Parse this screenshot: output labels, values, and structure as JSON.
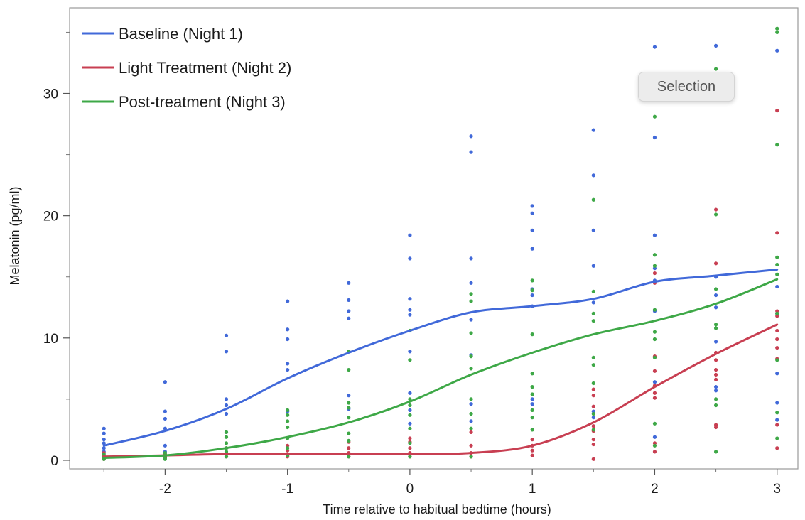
{
  "chart_data": {
    "type": "scatter",
    "title": "",
    "xlabel": "Time relative to habitual bedtime (hours)",
    "ylabel": "Melatonin (pg/ml)",
    "xlim": [
      -2.78,
      3.17
    ],
    "ylim": [
      -0.7,
      37.0
    ],
    "x_ticks": [
      -2,
      -1,
      0,
      1,
      2,
      3
    ],
    "x_tick_labels": [
      "-2",
      "-1",
      "0",
      "1",
      "2",
      "3"
    ],
    "y_ticks": [
      0,
      10,
      20,
      30
    ],
    "y_tick_labels": [
      "0",
      "10",
      "20",
      "30"
    ],
    "y_minor_ticks": [
      5,
      15,
      25,
      35
    ],
    "x_minor_ticks": [
      -2.5,
      -1.5,
      -0.5,
      0.5,
      1.5,
      2.5
    ],
    "grid": false,
    "legend_position": "top-left",
    "series": [
      {
        "name": "Baseline (Night 1)",
        "color": "#4169d9",
        "curve": [
          [
            -2.5,
            1.2
          ],
          [
            -2,
            2.4
          ],
          [
            -1.5,
            4.2
          ],
          [
            -1,
            6.7
          ],
          [
            -0.5,
            8.8
          ],
          [
            0,
            10.6
          ],
          [
            0.5,
            12.1
          ],
          [
            1,
            12.6
          ],
          [
            1.5,
            13.2
          ],
          [
            2,
            14.6
          ],
          [
            2.5,
            15.1
          ],
          [
            3,
            15.6
          ]
        ],
        "points": [
          [
            -2.5,
            2.6
          ],
          [
            -2.5,
            2.2
          ],
          [
            -2.5,
            1.7
          ],
          [
            -2.5,
            1.4
          ],
          [
            -2.5,
            1.0
          ],
          [
            -2.5,
            0.7
          ],
          [
            -2,
            6.4
          ],
          [
            -2,
            4.0
          ],
          [
            -2,
            3.4
          ],
          [
            -2,
            2.6
          ],
          [
            -2,
            1.2
          ],
          [
            -2,
            0.7
          ],
          [
            -1.5,
            10.2
          ],
          [
            -1.5,
            8.9
          ],
          [
            -1.5,
            5.0
          ],
          [
            -1.5,
            4.5
          ],
          [
            -1.5,
            3.8
          ],
          [
            -1.5,
            2.3
          ],
          [
            -1,
            13.0
          ],
          [
            -1,
            10.7
          ],
          [
            -1,
            9.9
          ],
          [
            -1,
            7.9
          ],
          [
            -1,
            7.4
          ],
          [
            -1,
            4.0
          ],
          [
            -0.5,
            14.5
          ],
          [
            -0.5,
            13.1
          ],
          [
            -0.5,
            12.2
          ],
          [
            -0.5,
            11.6
          ],
          [
            -0.5,
            8.9
          ],
          [
            -0.5,
            5.3
          ],
          [
            -0.5,
            4.2
          ],
          [
            0,
            18.4
          ],
          [
            0,
            16.5
          ],
          [
            0,
            13.2
          ],
          [
            0,
            12.3
          ],
          [
            0,
            11.9
          ],
          [
            0,
            8.9
          ],
          [
            0,
            5.5
          ],
          [
            0,
            4.1
          ],
          [
            0,
            3.0
          ],
          [
            0.5,
            26.5
          ],
          [
            0.5,
            25.2
          ],
          [
            0.5,
            16.5
          ],
          [
            0.5,
            14.5
          ],
          [
            0.5,
            11.5
          ],
          [
            0.5,
            8.6
          ],
          [
            0.5,
            4.6
          ],
          [
            0.5,
            3.2
          ],
          [
            1,
            20.8
          ],
          [
            1,
            20.2
          ],
          [
            1,
            18.8
          ],
          [
            1,
            17.3
          ],
          [
            1,
            14.0
          ],
          [
            1,
            13.5
          ],
          [
            1,
            12.6
          ],
          [
            1,
            5.0
          ],
          [
            1,
            4.6
          ],
          [
            1.5,
            27.0
          ],
          [
            1.5,
            23.3
          ],
          [
            1.5,
            18.8
          ],
          [
            1.5,
            15.9
          ],
          [
            1.5,
            12.9
          ],
          [
            1.5,
            4.0
          ],
          [
            1.5,
            3.5
          ],
          [
            2,
            33.8
          ],
          [
            2,
            26.4
          ],
          [
            2,
            18.4
          ],
          [
            2,
            15.7
          ],
          [
            2,
            14.7
          ],
          [
            2,
            12.2
          ],
          [
            2,
            6.4
          ],
          [
            2,
            1.9
          ],
          [
            2.5,
            33.9
          ],
          [
            2.5,
            15.0
          ],
          [
            2.5,
            13.5
          ],
          [
            2.5,
            12.5
          ],
          [
            2.5,
            9.7
          ],
          [
            2.5,
            6.0
          ],
          [
            2.5,
            5.7
          ],
          [
            3,
            33.5
          ],
          [
            3,
            14.2
          ],
          [
            3,
            12.0
          ],
          [
            3,
            7.1
          ],
          [
            3,
            4.7
          ],
          [
            3,
            3.3
          ]
        ]
      },
      {
        "name": "Light Treatment (Night 2)",
        "color": "#c83f52",
        "curve": [
          [
            -2.5,
            0.3
          ],
          [
            -2,
            0.4
          ],
          [
            -1.5,
            0.5
          ],
          [
            -1,
            0.5
          ],
          [
            -0.5,
            0.5
          ],
          [
            0,
            0.5
          ],
          [
            0.5,
            0.6
          ],
          [
            1,
            1.2
          ],
          [
            1.5,
            3.1
          ],
          [
            2,
            6.0
          ],
          [
            2.5,
            8.7
          ],
          [
            3,
            11.1
          ]
        ],
        "points": [
          [
            -2.5,
            0.6
          ],
          [
            -2.5,
            0.3
          ],
          [
            -2.5,
            0.2
          ],
          [
            -2.5,
            0.1
          ],
          [
            -2.5,
            0.4
          ],
          [
            -2,
            0.5
          ],
          [
            -2,
            0.3
          ],
          [
            -2,
            0.2
          ],
          [
            -2,
            0.4
          ],
          [
            -1.5,
            1.0
          ],
          [
            -1.5,
            0.6
          ],
          [
            -1.5,
            0.3
          ],
          [
            -1.5,
            0.5
          ],
          [
            -1,
            1.2
          ],
          [
            -1,
            0.8
          ],
          [
            -1,
            0.5
          ],
          [
            -1,
            0.3
          ],
          [
            -0.5,
            1.5
          ],
          [
            -0.5,
            1.0
          ],
          [
            -0.5,
            0.6
          ],
          [
            -0.5,
            0.3
          ],
          [
            0,
            1.8
          ],
          [
            0,
            1.5
          ],
          [
            0,
            1.0
          ],
          [
            0,
            0.6
          ],
          [
            0,
            0.3
          ],
          [
            0.5,
            2.3
          ],
          [
            0.5,
            1.2
          ],
          [
            0.5,
            0.6
          ],
          [
            0.5,
            0.3
          ],
          [
            1,
            1.7
          ],
          [
            1,
            1.2
          ],
          [
            1,
            0.8
          ],
          [
            1,
            0.4
          ],
          [
            1.5,
            5.8
          ],
          [
            1.5,
            5.3
          ],
          [
            1.5,
            4.4
          ],
          [
            1.5,
            2.8
          ],
          [
            1.5,
            2.4
          ],
          [
            1.5,
            1.7
          ],
          [
            1.5,
            1.3
          ],
          [
            1.5,
            0.1
          ],
          [
            2,
            15.3
          ],
          [
            2,
            14.5
          ],
          [
            2,
            8.5
          ],
          [
            2,
            7.3
          ],
          [
            2,
            6.1
          ],
          [
            2,
            5.5
          ],
          [
            2,
            5.1
          ],
          [
            2,
            1.4
          ],
          [
            2,
            0.7
          ],
          [
            2.5,
            20.5
          ],
          [
            2.5,
            16.1
          ],
          [
            2.5,
            8.8
          ],
          [
            2.5,
            8.2
          ],
          [
            2.5,
            7.4
          ],
          [
            2.5,
            7.0
          ],
          [
            2.5,
            6.6
          ],
          [
            2.5,
            2.9
          ],
          [
            2.5,
            2.7
          ],
          [
            3,
            28.6
          ],
          [
            3,
            18.6
          ],
          [
            3,
            12.2
          ],
          [
            3,
            11.8
          ],
          [
            3,
            10.6
          ],
          [
            3,
            9.9
          ],
          [
            3,
            9.2
          ],
          [
            3,
            8.3
          ],
          [
            3,
            2.9
          ],
          [
            3,
            1.0
          ]
        ]
      },
      {
        "name": "Post-treatment (Night 3)",
        "color": "#3ea847",
        "curve": [
          [
            -2.5,
            0.2
          ],
          [
            -2,
            0.4
          ],
          [
            -1.5,
            1.0
          ],
          [
            -1,
            1.9
          ],
          [
            -0.5,
            3.1
          ],
          [
            0,
            4.8
          ],
          [
            0.5,
            7.0
          ],
          [
            1,
            8.8
          ],
          [
            1.5,
            10.3
          ],
          [
            2,
            11.4
          ],
          [
            2.5,
            12.8
          ],
          [
            3,
            14.8
          ]
        ],
        "points": [
          [
            -2.5,
            0.5
          ],
          [
            -2.5,
            0.2
          ],
          [
            -2.5,
            0.1
          ],
          [
            -2,
            0.6
          ],
          [
            -2,
            0.2
          ],
          [
            -2,
            0.1
          ],
          [
            -1.5,
            2.3
          ],
          [
            -1.5,
            1.9
          ],
          [
            -1.5,
            1.4
          ],
          [
            -1.5,
            1.0
          ],
          [
            -1.5,
            0.7
          ],
          [
            -1.5,
            0.3
          ],
          [
            -1,
            4.1
          ],
          [
            -1,
            3.7
          ],
          [
            -1,
            3.2
          ],
          [
            -1,
            2.7
          ],
          [
            -1,
            1.8
          ],
          [
            -1,
            1.0
          ],
          [
            -1,
            0.4
          ],
          [
            -0.5,
            8.9
          ],
          [
            -0.5,
            7.4
          ],
          [
            -0.5,
            4.7
          ],
          [
            -0.5,
            4.3
          ],
          [
            -0.5,
            3.5
          ],
          [
            -0.5,
            2.2
          ],
          [
            -0.5,
            1.6
          ],
          [
            -0.5,
            0.3
          ],
          [
            0,
            10.6
          ],
          [
            0,
            8.2
          ],
          [
            0,
            5.0
          ],
          [
            0,
            4.5
          ],
          [
            0,
            3.7
          ],
          [
            0,
            2.6
          ],
          [
            0,
            1.4
          ],
          [
            0,
            0.3
          ],
          [
            0.5,
            13.6
          ],
          [
            0.5,
            13.0
          ],
          [
            0.5,
            10.4
          ],
          [
            0.5,
            8.5
          ],
          [
            0.5,
            7.5
          ],
          [
            0.5,
            5.0
          ],
          [
            0.5,
            3.8
          ],
          [
            0.5,
            2.6
          ],
          [
            0.5,
            0.3
          ],
          [
            1,
            14.7
          ],
          [
            1,
            13.9
          ],
          [
            1,
            10.3
          ],
          [
            1,
            7.1
          ],
          [
            1,
            6.0
          ],
          [
            1,
            5.4
          ],
          [
            1,
            4.1
          ],
          [
            1,
            3.5
          ],
          [
            1,
            2.5
          ],
          [
            1.5,
            21.3
          ],
          [
            1.5,
            13.8
          ],
          [
            1.5,
            12.0
          ],
          [
            1.5,
            11.4
          ],
          [
            1.5,
            8.4
          ],
          [
            1.5,
            7.8
          ],
          [
            1.5,
            6.3
          ],
          [
            1.5,
            3.8
          ],
          [
            1.5,
            2.5
          ],
          [
            2,
            28.1
          ],
          [
            2,
            16.8
          ],
          [
            2,
            15.9
          ],
          [
            2,
            12.3
          ],
          [
            2,
            10.5
          ],
          [
            2,
            9.9
          ],
          [
            2,
            8.4
          ],
          [
            2,
            3.0
          ],
          [
            2,
            1.2
          ],
          [
            2.5,
            32.0
          ],
          [
            2.5,
            20.1
          ],
          [
            2.5,
            14.0
          ],
          [
            2.5,
            11.1
          ],
          [
            2.5,
            10.8
          ],
          [
            2.5,
            5.0
          ],
          [
            2.5,
            4.5
          ],
          [
            2.5,
            0.7
          ],
          [
            3,
            35.3
          ],
          [
            3,
            35.0
          ],
          [
            3,
            25.8
          ],
          [
            3,
            16.6
          ],
          [
            3,
            16.0
          ],
          [
            3,
            15.2
          ],
          [
            3,
            12.0
          ],
          [
            3,
            8.2
          ],
          [
            3,
            3.9
          ],
          [
            3,
            1.8
          ]
        ]
      }
    ]
  },
  "tooltip": {
    "label": "Selection"
  }
}
